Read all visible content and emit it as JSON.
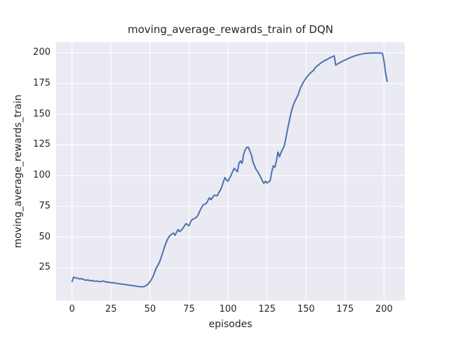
{
  "figure": {
    "title": "moving_average_rewards_train of DQN"
  },
  "chart_data": {
    "type": "line",
    "title": "moving_average_rewards_train of DQN",
    "xlabel": "episodes",
    "ylabel": "moving_average_rewards_train",
    "legend": "none",
    "grid": true,
    "plot_bg": "#EAEAF2",
    "grid_color": "#FFFFFF",
    "line_color": "#4C72B0",
    "text_color": "#262626",
    "xlim": [
      -10.2,
      213.3
    ],
    "ylim": [
      -1.6,
      208.7
    ],
    "xticks": [
      0,
      25,
      50,
      75,
      100,
      125,
      150,
      175,
      200
    ],
    "yticks": [
      25,
      50,
      75,
      100,
      125,
      150,
      175,
      200
    ],
    "x_start": 0,
    "x_step": 1,
    "values": [
      13.8,
      17.3,
      17.0,
      16.6,
      16.3,
      15.9,
      16.3,
      15.7,
      15.2,
      14.9,
      15.2,
      14.7,
      14.4,
      14.7,
      14.2,
      14.0,
      14.3,
      13.9,
      13.7,
      14.0,
      14.2,
      13.8,
      13.5,
      13.3,
      13.1,
      12.9,
      12.7,
      12.9,
      12.5,
      12.3,
      12.1,
      11.9,
      11.7,
      11.6,
      11.4,
      11.2,
      11.0,
      10.8,
      10.7,
      10.5,
      10.3,
      10.1,
      9.9,
      9.7,
      9.6,
      9.5,
      9.7,
      10.2,
      11.0,
      12.2,
      13.8,
      15.8,
      18.2,
      21.5,
      25.0,
      27.0,
      29.5,
      33.0,
      37.0,
      41.0,
      44.5,
      47.5,
      50.0,
      51.5,
      52.5,
      53.3,
      51.5,
      54.0,
      56.2,
      54.5,
      55.5,
      57.2,
      59.0,
      61.0,
      60.0,
      59.2,
      62.5,
      64.3,
      64.8,
      65.5,
      66.5,
      68.5,
      71.5,
      74.0,
      76.3,
      76.8,
      77.2,
      79.5,
      82.0,
      80.5,
      82.0,
      84.0,
      84.0,
      83.5,
      86.0,
      88.0,
      91.0,
      95.0,
      98.5,
      96.5,
      95.5,
      98.0,
      100.5,
      103.5,
      106.0,
      104.5,
      103.2,
      110.0,
      112.0,
      110.0,
      117.5,
      121.0,
      123.0,
      123.2,
      120.0,
      117.0,
      111.0,
      108.0,
      105.0,
      103.3,
      101.0,
      98.5,
      95.8,
      93.7,
      95.5,
      94.0,
      95.0,
      96.0,
      103.0,
      108.0,
      106.8,
      112.0,
      119.2,
      115.4,
      119.0,
      121.5,
      124.0,
      130.0,
      137.0,
      143.0,
      149.0,
      154.0,
      158.0,
      161.0,
      163.5,
      166.0,
      170.0,
      173.0,
      175.5,
      177.5,
      179.5,
      181.0,
      182.5,
      183.8,
      184.8,
      186.0,
      188.0,
      189.2,
      190.2,
      191.2,
      192.2,
      193.0,
      193.7,
      194.3,
      195.0,
      195.7,
      196.3,
      197.0,
      197.6,
      190.0,
      190.8,
      191.5,
      192.2,
      192.9,
      193.6,
      194.1,
      194.7,
      195.3,
      195.9,
      196.4,
      196.9,
      197.4,
      197.8,
      198.2,
      198.5,
      198.8,
      199.1,
      199.3,
      199.5,
      199.6,
      199.7,
      199.8,
      199.8,
      199.9,
      199.9,
      199.9,
      199.9,
      199.9,
      199.8,
      199.5,
      193.0,
      183.5,
      176.8
    ]
  }
}
